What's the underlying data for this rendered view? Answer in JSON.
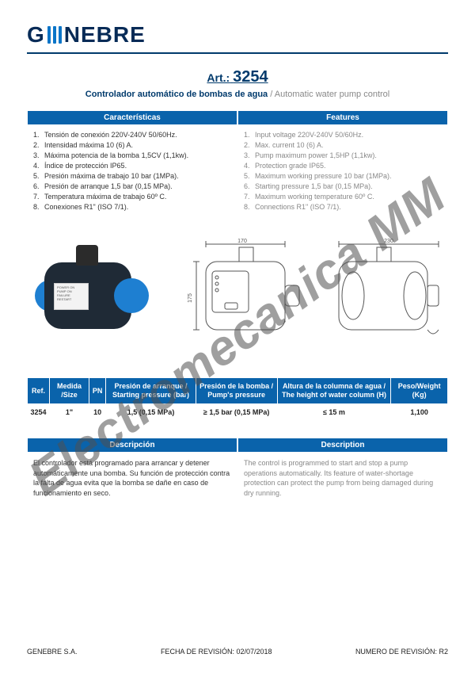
{
  "brand": "GENEBRE",
  "brand_color": "#072b57",
  "accent_color": "#0a75c8",
  "header_rule_color": "#003a6c",
  "table_header_bg": "#0a63ab",
  "muted_text_color": "#888888",
  "article": {
    "label": "Art.:",
    "number": "3254"
  },
  "subtitle": {
    "es": "Controlador automático de bombas de agua",
    "sep": " / ",
    "en": "Automatic water pump control"
  },
  "features_header": {
    "es": "Características",
    "en": "Features"
  },
  "features": {
    "es": [
      "Tensión de conexión 220V-240V 50/60Hz.",
      "Intensidad máxima 10 (6) A.",
      "Máxima potencia de la bomba 1,5CV (1,1kw).",
      "Índice de protección IP65.",
      "Presión máxima de trabajo 10 bar (1MPa).",
      "Presión de arranque 1,5 bar (0,15 MPa).",
      "Temperatura máxima de trabajo 60º C.",
      "Conexiones R1\" (ISO 7/1)."
    ],
    "en": [
      "Input voltage 220V-240V 50/60Hz.",
      "Max. current 10 (6) A.",
      "Pump maximum power 1,5HP (1,1kw).",
      "Protection grade IP65.",
      "Maximum working pressure 10 bar (1MPa).",
      "Starting pressure 1,5 bar (0,15 MPa).",
      "Maximum working temperature 60º C.",
      "Connections R1\" (ISO 7/1)."
    ]
  },
  "drawing_dims": {
    "w1": "170",
    "w2": "230",
    "h": "175"
  },
  "spec_headers": [
    "Ref.",
    "Medida /Size",
    "PN",
    "Presión de arranque / Starting pressure (bar)",
    "Presión de la bomba / Pump's pressure",
    "Altura de la columna de agua / The height of water column (H)",
    "Peso/Weight (Kg)"
  ],
  "spec_row": [
    "3254",
    "1\"",
    "10",
    "1,5 (0,15 MPa)",
    "≥ 1,5 bar (0,15 MPa)",
    "≤ 15 m",
    "1,100"
  ],
  "desc_header": {
    "es": "Descripción",
    "en": "Description"
  },
  "desc": {
    "es": "El controlador está programado para arrancar y detener automáticamente una bomba. Su función de protección contra la falta de agua evita que la bomba se dañe en caso de funcionamiento en seco.",
    "en": "The control is programmed to start and stop a pump operations automatically. Its feature of water-shortage protection can protect the pump from being damaged during dry running."
  },
  "footer": {
    "company": "GENEBRE S.A.",
    "rev_date_label": "FECHA DE REVISIÓN:",
    "rev_date": "02/07/2018",
    "rev_num_label": "NUMERO DE REVISIÓN:",
    "rev_num": "R2"
  },
  "watermark": "Electromecanica MM"
}
